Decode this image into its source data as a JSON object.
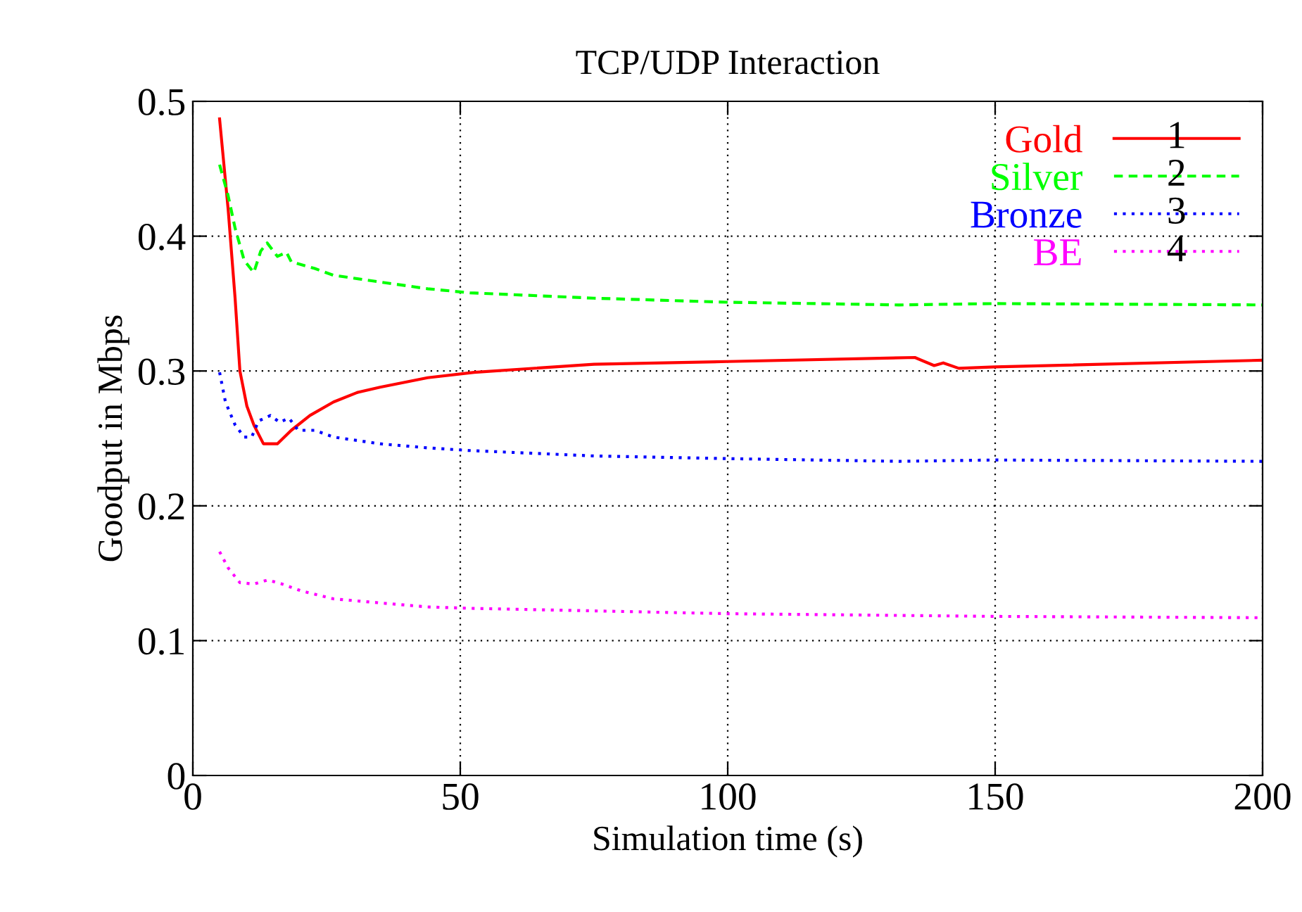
{
  "chart_data": {
    "type": "line",
    "title": "TCP/UDP Interaction",
    "xlabel": "Simulation time (s)",
    "ylabel": "Goodput in Mbps",
    "xlim": [
      0,
      200
    ],
    "ylim": [
      0,
      0.5
    ],
    "xticks": [
      0,
      50,
      100,
      150,
      200
    ],
    "yticks": [
      0,
      0.1,
      0.2,
      0.3,
      0.4,
      0.5
    ],
    "grid": true,
    "legend": "top right",
    "marker": "none",
    "annotations": [
      "1",
      "2",
      "3",
      "4"
    ],
    "series": [
      {
        "name": "Gold",
        "color": "#ff0000",
        "line_style": "solid",
        "x": [
          5,
          6.6,
          7.9,
          8.8,
          10.1,
          11.4,
          13.2,
          15.8,
          18.4,
          21.9,
          26.3,
          30.7,
          35,
          43.9,
          52.6,
          75,
          100,
          135,
          138.6,
          140.3,
          143.2,
          150,
          200
        ],
        "values": [
          0.487,
          0.42,
          0.354,
          0.3,
          0.274,
          0.26,
          0.246,
          0.246,
          0.256,
          0.267,
          0.277,
          0.284,
          0.288,
          0.295,
          0.299,
          0.305,
          0.307,
          0.31,
          0.304,
          0.306,
          0.302,
          0.303,
          0.308
        ]
      },
      {
        "name": "Silver",
        "color": "#00ff00",
        "line_style": "dashed",
        "x": [
          5,
          6.6,
          7.9,
          9.6,
          11.4,
          12.7,
          13.9,
          15.8,
          17.5,
          18.4,
          22.8,
          26.3,
          35,
          43.9,
          51.8,
          75,
          100,
          132,
          150,
          200
        ],
        "values": [
          0.453,
          0.43,
          0.406,
          0.382,
          0.373,
          0.389,
          0.395,
          0.385,
          0.388,
          0.381,
          0.376,
          0.371,
          0.366,
          0.361,
          0.358,
          0.354,
          0.351,
          0.349,
          0.35,
          0.349
        ]
      },
      {
        "name": "Bronze",
        "color": "#0000ff",
        "line_style": "dotted",
        "x": [
          5,
          6.1,
          7.9,
          9.6,
          11,
          12.3,
          14.5,
          16.2,
          18,
          19.7,
          22.8,
          26.3,
          35,
          43.9,
          51.8,
          75,
          100,
          132,
          150,
          200
        ],
        "values": [
          0.299,
          0.277,
          0.26,
          0.251,
          0.251,
          0.263,
          0.267,
          0.262,
          0.265,
          0.256,
          0.256,
          0.251,
          0.246,
          0.243,
          0.241,
          0.237,
          0.235,
          0.233,
          0.234,
          0.233
        ]
      },
      {
        "name": "BE",
        "color": "#ff00ff",
        "line_style": "dotted",
        "x": [
          5,
          6.6,
          8.8,
          11.4,
          14,
          16.7,
          20.2,
          26.3,
          35,
          43.9,
          51.8,
          100,
          150,
          200
        ],
        "values": [
          0.166,
          0.154,
          0.143,
          0.142,
          0.145,
          0.142,
          0.137,
          0.131,
          0.128,
          0.125,
          0.124,
          0.12,
          0.118,
          0.117
        ]
      }
    ]
  }
}
